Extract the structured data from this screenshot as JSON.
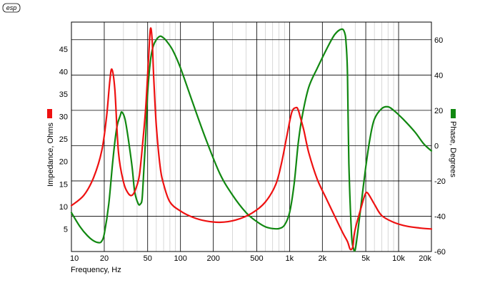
{
  "chart_data": {
    "type": "line",
    "logo": "esp",
    "xlabel": "Frequency, Hz",
    "ylabel_left": "Impedance, Ohms",
    "ylabel_right": "Phase, Degrees",
    "x_scale": "log",
    "xlim": [
      10,
      20000
    ],
    "ylim_left": [
      0,
      51
    ],
    "ylim_right": [
      -60,
      70
    ],
    "x_ticks": [
      {
        "value": 10,
        "label": "10"
      },
      {
        "value": 20,
        "label": "20"
      },
      {
        "value": 50,
        "label": "50"
      },
      {
        "value": 100,
        "label": "100"
      },
      {
        "value": 200,
        "label": "200"
      },
      {
        "value": 500,
        "label": "500"
      },
      {
        "value": 1000,
        "label": "1k"
      },
      {
        "value": 2000,
        "label": "2k"
      },
      {
        "value": 5000,
        "label": "5k"
      },
      {
        "value": 10000,
        "label": "10k"
      },
      {
        "value": 20000,
        "label": "20k"
      }
    ],
    "y_left_ticks": [
      {
        "value": 5,
        "label": "5"
      },
      {
        "value": 10,
        "label": "10"
      },
      {
        "value": 15,
        "label": "15"
      },
      {
        "value": 20,
        "label": "20"
      },
      {
        "value": 25,
        "label": "25"
      },
      {
        "value": 30,
        "label": "30"
      },
      {
        "value": 35,
        "label": "35"
      },
      {
        "value": 40,
        "label": "40"
      },
      {
        "value": 45,
        "label": "45"
      }
    ],
    "y_right_ticks": [
      {
        "value": -60,
        "label": "-60"
      },
      {
        "value": -40,
        "label": "-40"
      },
      {
        "value": -20,
        "label": "-20"
      },
      {
        "value": 0,
        "label": "0"
      },
      {
        "value": 20,
        "label": "20"
      },
      {
        "value": 40,
        "label": "40"
      },
      {
        "value": 60,
        "label": "60"
      }
    ],
    "grid": true,
    "series": [
      {
        "axis": "left",
        "color": "#ee1111",
        "x": [
          10,
          13,
          16,
          19,
          21,
          22.5,
          23.5,
          25,
          27,
          30,
          33,
          36,
          39,
          42,
          45,
          48,
          51,
          53,
          55,
          57,
          60,
          65,
          70,
          80,
          100,
          130,
          170,
          230,
          320,
          450,
          600,
          750,
          850,
          950,
          1050,
          1150,
          1200,
          1250,
          1350,
          1500,
          1800,
          2200,
          2700,
          3100,
          3400,
          3600,
          3800,
          3900,
          4100,
          4500,
          4900,
          5200,
          6000,
          7000,
          9000,
          12000,
          16000,
          20000
        ],
        "y": [
          10.2,
          12.5,
          16.5,
          22.5,
          30,
          38,
          40.5,
          36,
          22,
          15.5,
          13,
          12.5,
          14,
          17,
          24,
          32,
          43,
          49.5,
          47,
          38,
          28,
          19,
          15,
          11,
          9,
          7.6,
          6.8,
          6.5,
          7,
          8.5,
          11,
          15,
          20,
          26,
          31,
          32,
          31.5,
          30,
          27,
          22,
          16,
          11.5,
          7,
          4,
          2.2,
          0.5,
          1,
          3.5,
          6,
          9.5,
          12.5,
          13,
          10.5,
          8,
          6.5,
          5.6,
          5.2,
          5
        ]
      },
      {
        "axis": "right",
        "color": "#118811",
        "x": [
          10,
          12,
          14,
          16,
          18,
          19,
          20,
          22,
          24,
          26,
          28,
          29,
          31,
          33,
          36,
          38,
          41,
          43,
          44.5,
          46,
          48,
          50,
          53,
          56,
          60,
          65,
          70,
          75,
          85,
          100,
          130,
          170,
          230,
          300,
          400,
          500,
          600,
          700,
          800,
          900,
          1000,
          1100,
          1200,
          1300,
          1500,
          1800,
          2200,
          2600,
          3000,
          3200,
          3300,
          3400,
          3500,
          3700,
          3850,
          4000,
          4200,
          4500,
          5000,
          5500,
          6000,
          7000,
          8000,
          9000,
          11000,
          14000,
          17000,
          20000
        ],
        "y": [
          -38,
          -46,
          -51,
          -54,
          -55,
          -54,
          -50,
          -33,
          -8,
          10,
          17,
          19,
          15,
          5,
          -12,
          -26,
          -33,
          -33,
          -30,
          -15,
          5,
          30,
          48,
          56,
          60,
          62,
          61,
          59,
          54,
          44,
          24,
          4,
          -16,
          -28,
          -38,
          -43,
          -46,
          -47,
          -47,
          -45,
          -38,
          -22,
          1,
          16,
          33,
          44,
          55,
          63,
          66,
          64,
          58,
          40,
          -10,
          -50,
          -58,
          -59,
          -50,
          -35,
          -12,
          5,
          15,
          21,
          22,
          20,
          15,
          8,
          1,
          -3
        ]
      }
    ]
  }
}
